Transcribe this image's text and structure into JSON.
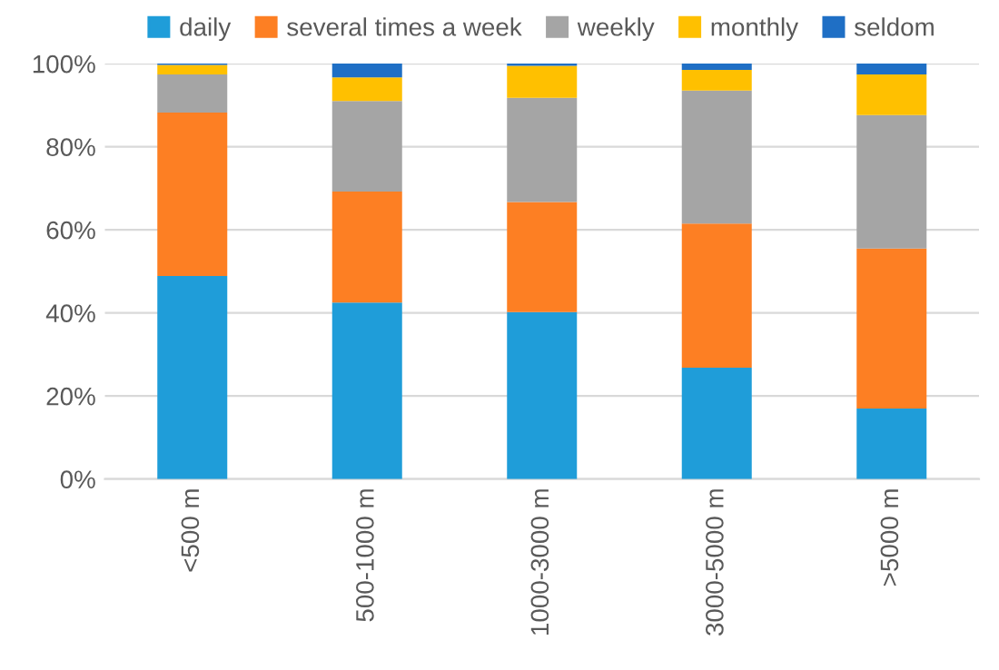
{
  "chart_data": {
    "type": "bar",
    "stacked": true,
    "categories": [
      "<500 m",
      "500-1000 m",
      "1000-3000 m",
      "3000-5000 m",
      ">5000 m"
    ],
    "series": [
      {
        "name": "daily",
        "color": "#1f9dd9",
        "values": [
          48.9,
          42.5,
          40.2,
          26.8,
          17.0
        ]
      },
      {
        "name": "several times a week",
        "color": "#fd7f23",
        "values": [
          39.3,
          26.7,
          26.5,
          34.7,
          38.5
        ]
      },
      {
        "name": "weekly",
        "color": "#a5a5a5",
        "values": [
          9.2,
          21.8,
          25.1,
          32.0,
          32.1
        ]
      },
      {
        "name": "monthly",
        "color": "#ffc000",
        "values": [
          2.3,
          5.7,
          7.7,
          5.0,
          9.8
        ]
      },
      {
        "name": "seldom",
        "color": "#1f6fc5",
        "values": [
          0.3,
          3.3,
          0.5,
          1.5,
          2.6
        ]
      }
    ],
    "ylim": [
      0,
      100
    ],
    "yticks": [
      {
        "value": 0,
        "label": "0%"
      },
      {
        "value": 20,
        "label": "20%"
      },
      {
        "value": 40,
        "label": "40%"
      },
      {
        "value": 60,
        "label": "60%"
      },
      {
        "value": 80,
        "label": "80%"
      },
      {
        "value": 100,
        "label": "100%"
      }
    ],
    "grid": "y",
    "legend": "top"
  }
}
